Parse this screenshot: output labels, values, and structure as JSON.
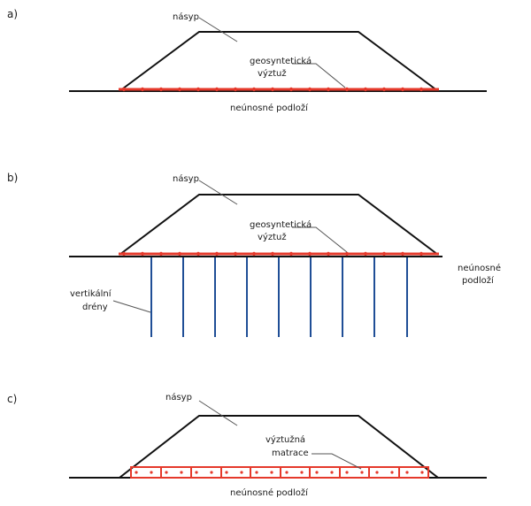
{
  "panels": [
    {
      "letter": "a)",
      "fill_label": "násyp",
      "reinforcement_label_1": "geosyntetická",
      "reinforcement_label_2": "výztuž",
      "subsoil_label": "neúnosné podloží"
    },
    {
      "letter": "b)",
      "fill_label": "násyp",
      "reinforcement_label_1": "geosyntetická",
      "reinforcement_label_2": "výztuž",
      "subsoil_label_1": "neúnosné",
      "subsoil_label_2": "podloží",
      "drains_label_1": "vertikální",
      "drains_label_2": "drény"
    },
    {
      "letter": "c)",
      "fill_label": "násyp",
      "mattress_label_1": "výztužná",
      "mattress_label_2": "matrace",
      "subsoil_label": "neúnosné podloží"
    }
  ],
  "colors": {
    "reinforcement": "#e5392b",
    "drains": "#1f4e96",
    "lines": "#111111"
  }
}
